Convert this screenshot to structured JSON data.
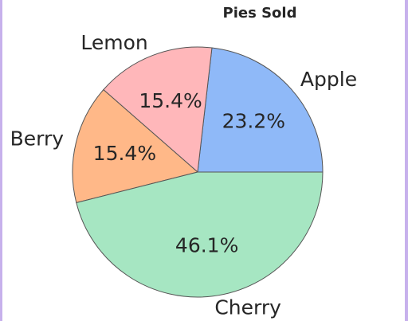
{
  "chart_data": {
    "type": "pie",
    "title": "Pies Sold",
    "categories": [
      "Apple",
      "Lemon",
      "Berry",
      "Cherry"
    ],
    "values": [
      23.2,
      15.4,
      15.4,
      46.1
    ],
    "value_labels": [
      "23.2%",
      "15.4%",
      "15.4%",
      "46.1%"
    ],
    "colors": [
      "#8fb9f8",
      "#ffb7ba",
      "#ffb888",
      "#a6e6c2"
    ]
  }
}
